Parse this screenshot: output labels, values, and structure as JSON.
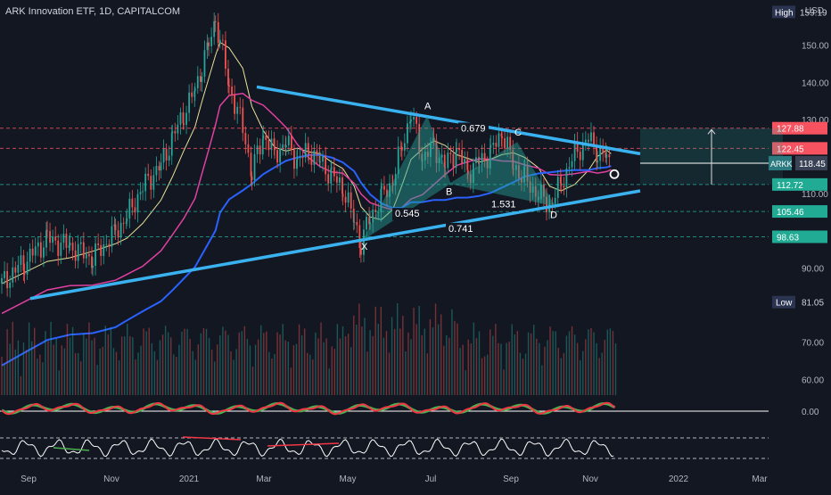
{
  "chart_data": {
    "type": "candlestick",
    "title": "ARK Innovation ETF, 1D, CAPITALCOM",
    "currency": "USD",
    "symbol": "ARKK",
    "last_price": "118.45",
    "ylim": [
      56,
      160
    ],
    "price_ticks": [
      "150.00",
      "140.00",
      "130.00",
      "110.00",
      "90.00",
      "70.00",
      "60.00"
    ],
    "x_labels": [
      "Sep",
      "Nov",
      "2021",
      "Mar",
      "May",
      "Jul",
      "Sep",
      "Nov",
      "2022",
      "Mar"
    ],
    "price_close_path": [
      [
        0,
        86
      ],
      [
        10,
        92
      ],
      [
        20,
        98
      ],
      [
        30,
        96
      ],
      [
        40,
        93
      ],
      [
        50,
        100
      ],
      [
        55,
        104
      ],
      [
        62,
        112
      ],
      [
        70,
        118
      ],
      [
        75,
        125
      ],
      [
        80,
        132
      ],
      [
        85,
        138
      ],
      [
        88,
        145
      ],
      [
        91,
        150
      ],
      [
        94,
        157
      ],
      [
        96,
        152
      ],
      [
        100,
        139
      ],
      [
        106,
        128
      ],
      [
        110,
        116
      ],
      [
        115,
        126
      ],
      [
        120,
        121
      ],
      [
        125,
        124
      ],
      [
        130,
        119
      ],
      [
        135,
        122
      ],
      [
        140,
        119
      ],
      [
        145,
        115
      ],
      [
        150,
        112
      ],
      [
        155,
        103
      ],
      [
        158,
        97
      ],
      [
        162,
        104
      ],
      [
        167,
        109
      ],
      [
        172,
        114
      ],
      [
        176,
        123
      ],
      [
        180,
        132
      ],
      [
        185,
        120
      ],
      [
        190,
        123
      ],
      [
        195,
        118
      ],
      [
        200,
        122
      ],
      [
        205,
        116
      ],
      [
        210,
        119
      ],
      [
        215,
        121
      ],
      [
        220,
        127
      ],
      [
        225,
        118
      ],
      [
        230,
        114
      ],
      [
        236,
        110
      ],
      [
        241,
        107
      ],
      [
        246,
        113
      ],
      [
        252,
        121
      ],
      [
        258,
        125
      ],
      [
        262,
        122
      ],
      [
        266,
        120
      ],
      [
        268,
        117
      ]
    ],
    "levels": [
      {
        "value": "127.88",
        "color": "#f7525f"
      },
      {
        "value": "122.45",
        "color": "#f7525f"
      },
      {
        "value": "112.72",
        "color": "#22ab94"
      },
      {
        "value": "105.46",
        "color": "#22ab94"
      },
      {
        "value": "98.63",
        "color": "#22ab94"
      }
    ],
    "high_label": "High",
    "high_value": "159.19",
    "low_label": "Low",
    "low_value": "81.05",
    "pattern_points": [
      "X",
      "A",
      "B",
      "C",
      "D"
    ],
    "pattern_ratios": [
      "0.545",
      "0.679",
      "1.531",
      "0.741"
    ],
    "oscillator_zero": "0.00"
  }
}
